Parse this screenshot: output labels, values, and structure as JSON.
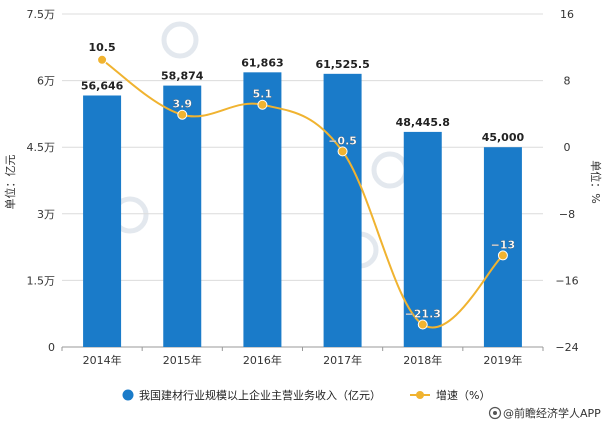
{
  "chart_data": {
    "type": "bar",
    "categories": [
      "2014年",
      "2015年",
      "2016年",
      "2017年",
      "2018年",
      "2019年"
    ],
    "series": [
      {
        "name": "我国建材行业规模以上企业主营业务收入（亿元）",
        "type": "bar",
        "axis": "left",
        "values": [
          56646,
          58874,
          61863,
          61525.5,
          48445.8,
          45000
        ],
        "labels": [
          "56,646",
          "58,874",
          "61,863",
          "61,525.5",
          "48,445.8",
          "45,000"
        ],
        "color": "#1a7bc9"
      },
      {
        "name": "增速（%）",
        "type": "line",
        "axis": "right",
        "values": [
          10.5,
          3.9,
          5.1,
          -0.5,
          -21.3,
          -13
        ],
        "labels": [
          "10.5",
          "3.9",
          "5.1",
          "−0.5",
          "−21.3",
          "−13"
        ],
        "color": "#f0b330"
      }
    ],
    "left_axis": {
      "label": "单位：亿元",
      "min": 0,
      "max": 75000,
      "ticks": [
        0,
        15000,
        30000,
        45000,
        60000,
        75000
      ],
      "tick_labels": [
        "0",
        "1.5万",
        "3万",
        "4.5万",
        "6万",
        "7.5万"
      ]
    },
    "right_axis": {
      "label": "单位：%",
      "min": -24,
      "max": 16,
      "ticks": [
        -24,
        -16,
        -8,
        0,
        8,
        16
      ],
      "tick_labels": [
        "−24",
        "−16",
        "−8",
        "0",
        "8",
        "16"
      ]
    },
    "grid": true,
    "legend_position": "bottom",
    "source": "@前瞻经济学人APP"
  }
}
